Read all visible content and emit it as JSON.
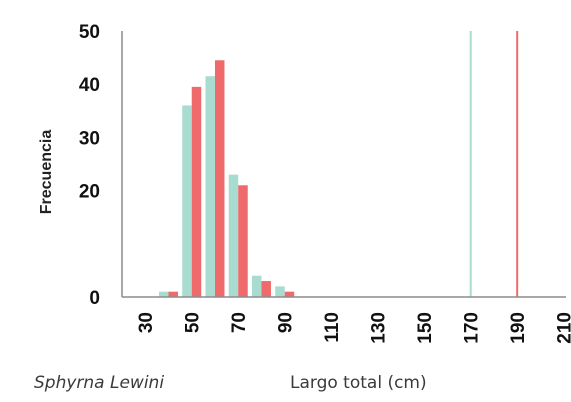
{
  "chart_data": {
    "type": "bar",
    "xlabel": "Largo total (cm)",
    "ylabel": "Frecuencia",
    "species": "Sphyrna Lewini",
    "ylim": [
      0,
      50
    ],
    "yticks": [
      "0",
      "20",
      "30",
      "40",
      "50"
    ],
    "xticks": [
      "30",
      "50",
      "70",
      "90",
      "110",
      "130",
      "150",
      "170",
      "190",
      "210"
    ],
    "x_range": [
      20,
      211
    ],
    "grid": false,
    "series": [
      {
        "color": "#a8dcd0",
        "x": [
          40,
          50,
          60,
          70,
          80,
          90
        ],
        "values": [
          1,
          36,
          41.5,
          23,
          4,
          2
        ]
      },
      {
        "color": "#ef6b6b",
        "x": [
          40,
          50,
          60,
          70,
          80,
          90
        ],
        "values": [
          1,
          39.5,
          44.5,
          21,
          3,
          1
        ]
      }
    ],
    "reference_lines": [
      {
        "x": 170,
        "color": "#a8dcd0"
      },
      {
        "x": 190,
        "color": "#ef6b6b"
      }
    ]
  }
}
